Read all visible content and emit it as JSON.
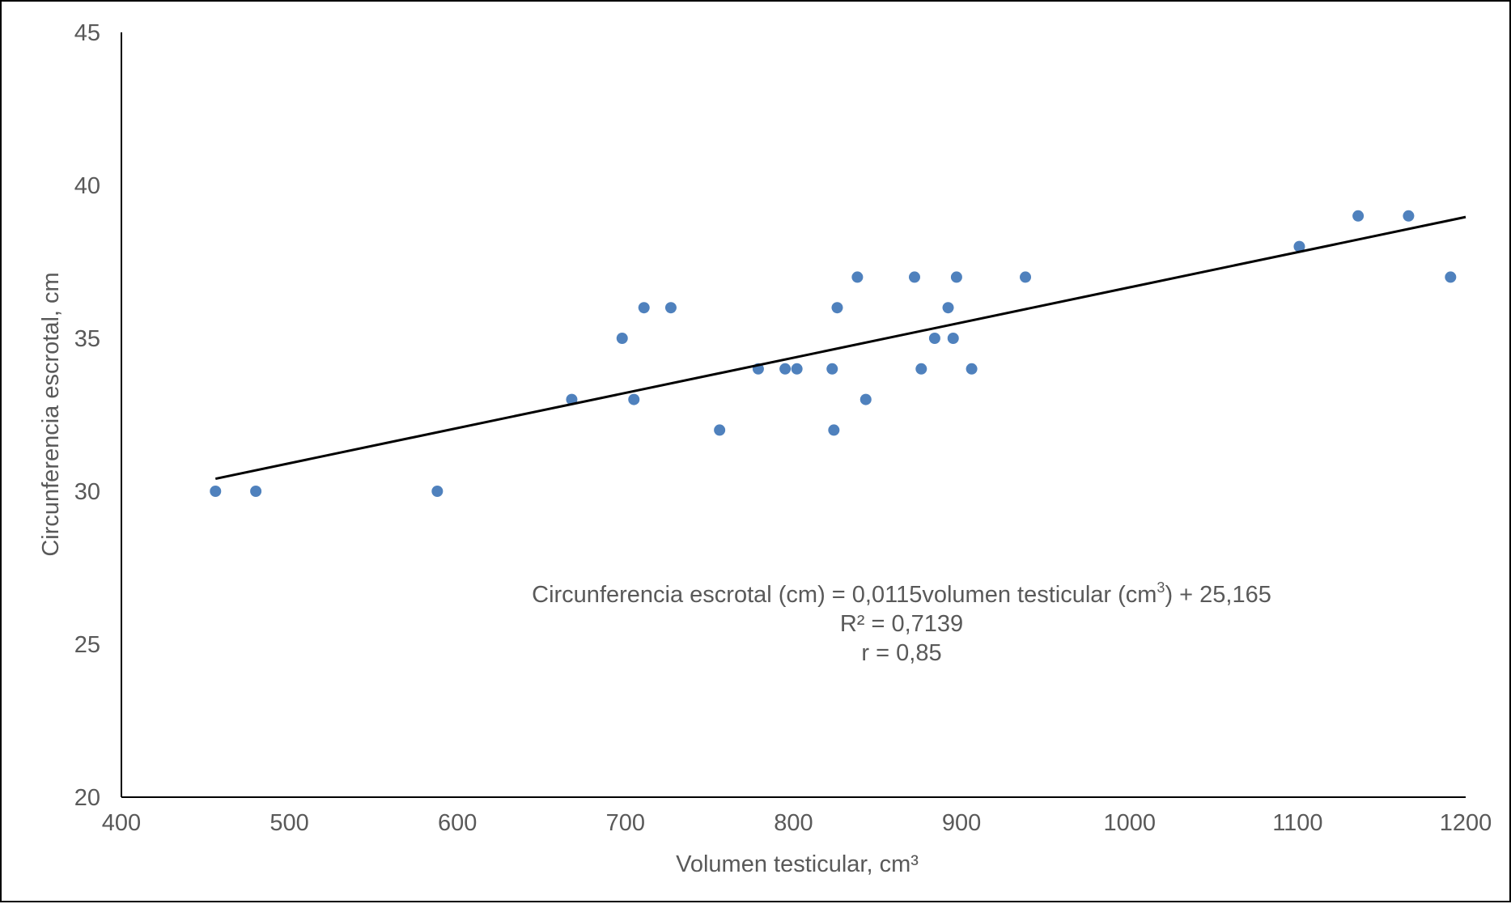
{
  "chart_data": {
    "type": "scatter",
    "xlabel": "Volumen testicular, cm³",
    "ylabel": "Circunferencia escrotal, cm",
    "xlim": [
      400,
      1200
    ],
    "ylim": [
      20,
      45
    ],
    "x_ticks": [
      400,
      500,
      600,
      700,
      800,
      900,
      1000,
      1100,
      1200
    ],
    "y_ticks": [
      20,
      25,
      30,
      35,
      40,
      45
    ],
    "x_tick_labels": [
      "400",
      "500",
      "600",
      "700",
      "800",
      "900",
      "1000",
      "1100",
      "1200"
    ],
    "y_tick_labels": [
      "20",
      "25",
      "30",
      "35",
      "40",
      "45"
    ],
    "grid": false,
    "colors": {
      "points": "#4f81bd",
      "trendline": "#000000",
      "axis": "#000000",
      "text": "#595959"
    },
    "series": [
      {
        "points": [
          {
            "x": 456,
            "y": 30
          },
          {
            "x": 480,
            "y": 30
          },
          {
            "x": 588,
            "y": 30
          },
          {
            "x": 668,
            "y": 33
          },
          {
            "x": 698,
            "y": 35
          },
          {
            "x": 705,
            "y": 33
          },
          {
            "x": 711,
            "y": 36
          },
          {
            "x": 727,
            "y": 36
          },
          {
            "x": 756,
            "y": 32
          },
          {
            "x": 779,
            "y": 34
          },
          {
            "x": 795,
            "y": 34
          },
          {
            "x": 802,
            "y": 34
          },
          {
            "x": 823,
            "y": 34
          },
          {
            "x": 824,
            "y": 32
          },
          {
            "x": 826,
            "y": 36
          },
          {
            "x": 838,
            "y": 37
          },
          {
            "x": 843,
            "y": 33
          },
          {
            "x": 872,
            "y": 37
          },
          {
            "x": 876,
            "y": 34
          },
          {
            "x": 884,
            "y": 35
          },
          {
            "x": 892,
            "y": 36
          },
          {
            "x": 895,
            "y": 35
          },
          {
            "x": 897,
            "y": 37
          },
          {
            "x": 906,
            "y": 34
          },
          {
            "x": 938,
            "y": 37
          },
          {
            "x": 1101,
            "y": 38
          },
          {
            "x": 1136,
            "y": 39
          },
          {
            "x": 1166,
            "y": 39
          },
          {
            "x": 1191,
            "y": 37
          }
        ]
      }
    ],
    "trendline": {
      "type": "linear",
      "slope": 0.0115,
      "intercept": 25.165,
      "x_range": [
        456,
        1200
      ]
    },
    "annotations": {
      "equation_prefix": "Circunferencia escrotal (cm) = 0,0115volumen testicular (cm",
      "equation_sup": "3",
      "equation_suffix": ") + 25,165",
      "r_squared": "R² = 0,7139",
      "r": "r = 0,85"
    }
  }
}
